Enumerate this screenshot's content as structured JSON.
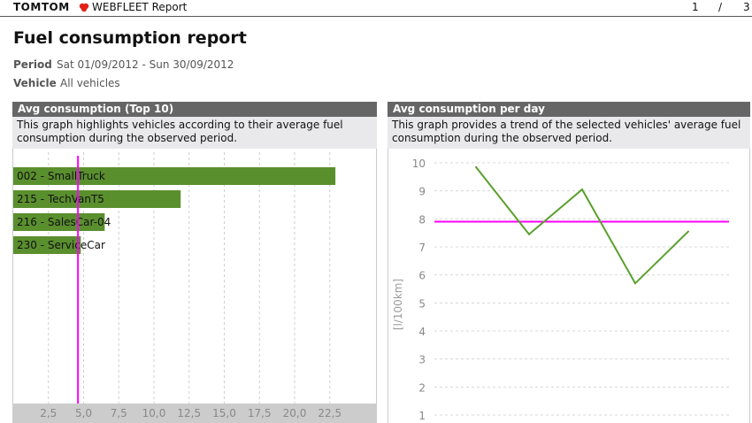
{
  "header": {
    "brand": "TOMTOM",
    "product": "WEBFLEET Report",
    "page_current": "1",
    "page_separator": "/",
    "page_total": "3"
  },
  "report": {
    "title": "Fuel consumption report",
    "period_label": "Period",
    "period_value": "Sat 01/09/2012 - Sun 30/09/2012",
    "vehicle_label": "Vehicle",
    "vehicle_value": "All vehicles"
  },
  "panels": {
    "left": {
      "title": "Avg consumption (Top 10)",
      "description": "This graph highlights vehicles according to their average fuel consumption during the observed period."
    },
    "right": {
      "title": "Avg consumption per day",
      "description": "This graph provides a trend of the selected vehicles' average fuel consumption during the observed period."
    }
  },
  "colors": {
    "bar": "#5a8f2e",
    "line": "#5aa02c",
    "average": "#ff00ff",
    "header": "#666666"
  },
  "chart_data": [
    {
      "type": "bar",
      "orientation": "horizontal",
      "categories": [
        "002 - SmallTruck",
        "215 - TechVanT5",
        "216 - SalesCar-04",
        "230 - ServiceCar"
      ],
      "values": [
        22.9,
        11.9,
        6.5,
        4.8
      ],
      "average": 4.6,
      "xlim": [
        0,
        25
      ],
      "xticks": [
        "2,5",
        "5,0",
        "7,5",
        "10,0",
        "12,5",
        "15,0",
        "17,5",
        "20,0",
        "22,5"
      ]
    },
    {
      "type": "line",
      "x": [
        1,
        2,
        3,
        4,
        5
      ],
      "values": [
        9.85,
        7.45,
        9.05,
        5.7,
        7.55
      ],
      "average": 7.9,
      "ylim": [
        1,
        10
      ],
      "yticks": [
        "10",
        "9",
        "8",
        "7",
        "6",
        "5",
        "4",
        "3",
        "2",
        "1"
      ],
      "ylabel": "[l/100km]"
    }
  ]
}
